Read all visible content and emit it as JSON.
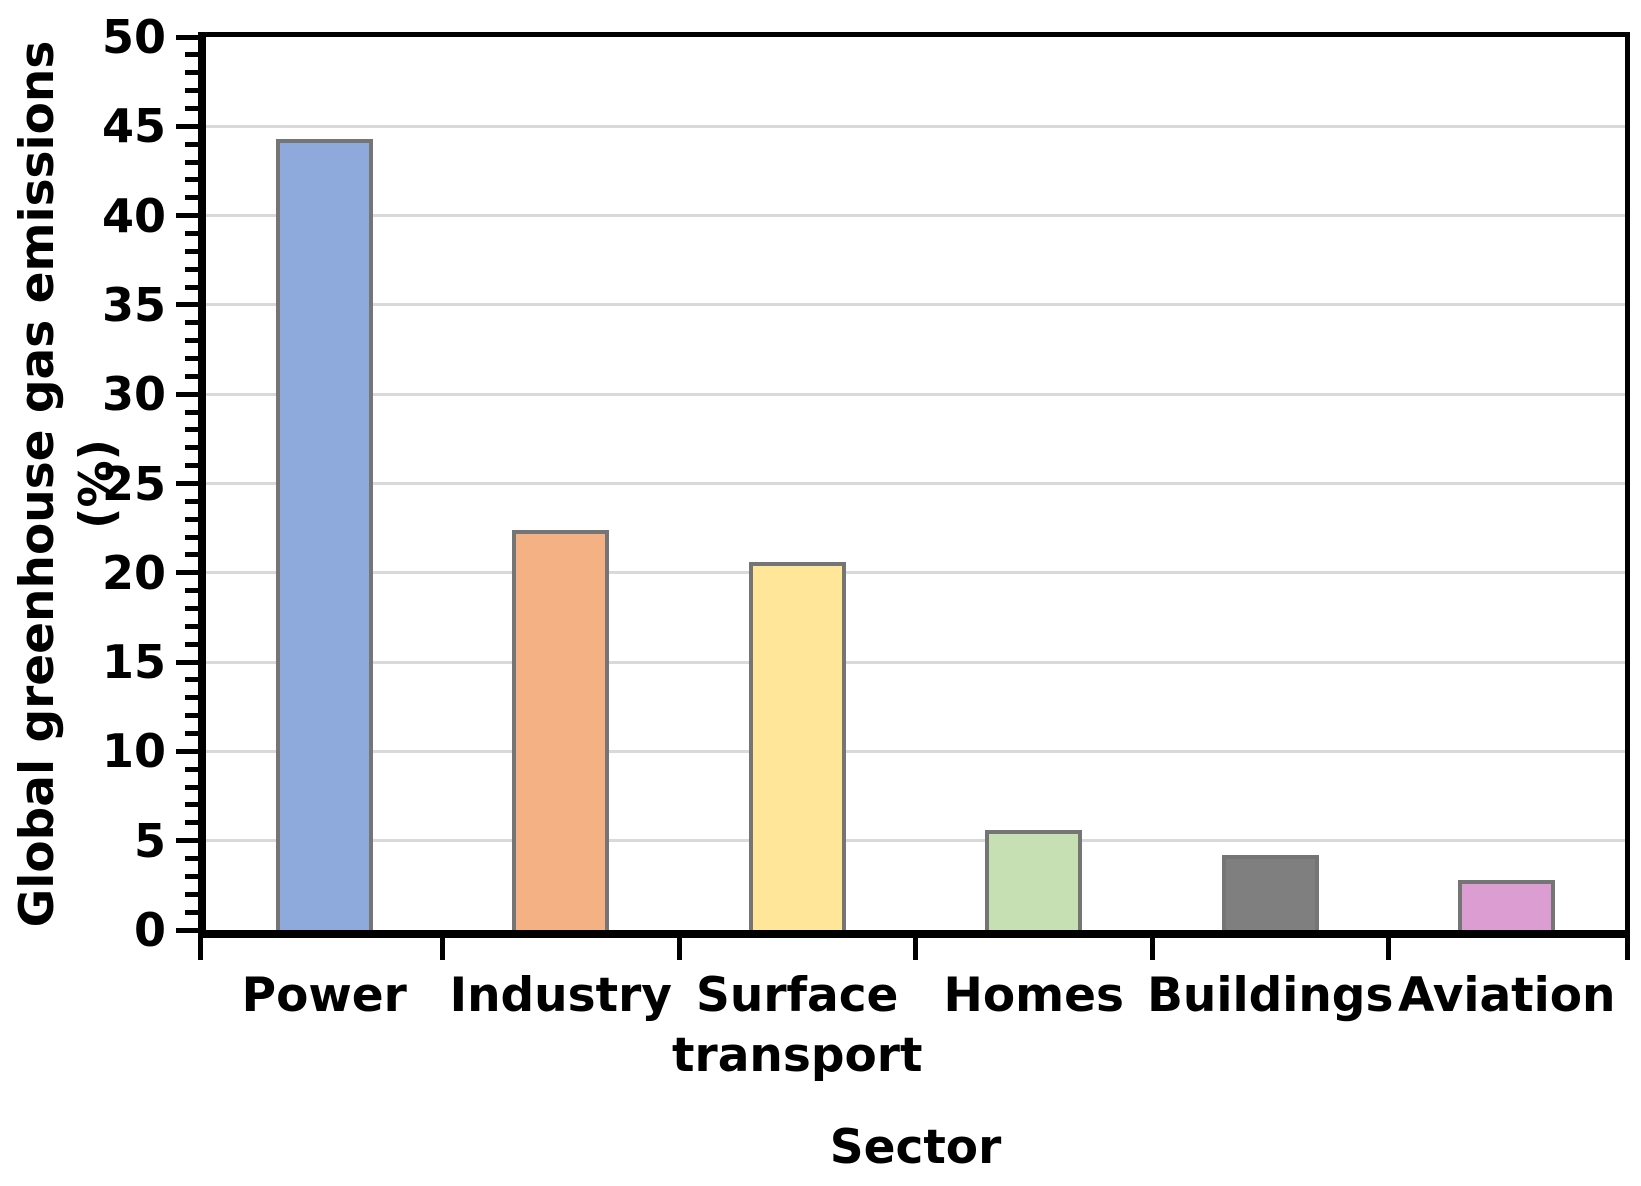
{
  "chart_data": {
    "type": "bar",
    "title": "",
    "xlabel": "Sector",
    "ylabel": "Global greenhouse gas emissions (%)",
    "categories": [
      "Power",
      "Industry",
      "Surface transport",
      "Homes",
      "Buildings",
      "Aviation"
    ],
    "category_label_lines": [
      [
        "Power"
      ],
      [
        "Industry"
      ],
      [
        "Surface",
        "transport"
      ],
      [
        "Homes"
      ],
      [
        "Buildings"
      ],
      [
        "Aviation"
      ]
    ],
    "values": [
      44.3,
      22.4,
      20.6,
      5.6,
      4.2,
      2.8
    ],
    "bar_colors": [
      "#8EA9DB",
      "#F4B183",
      "#FFE699",
      "#C6E0B4",
      "#7F7F7F",
      "#DC9DD2"
    ],
    "bar_border_color": "#757575",
    "ylim": [
      0,
      50
    ],
    "y_major_step": 5,
    "y_minor_step": 1,
    "y_ticks": [
      0,
      5,
      10,
      15,
      20,
      25,
      30,
      35,
      40,
      45,
      50
    ],
    "grid": true,
    "gridline_color": "#D9D9D9",
    "legend": "none",
    "plot_border": "black box, axes on all four sides"
  }
}
